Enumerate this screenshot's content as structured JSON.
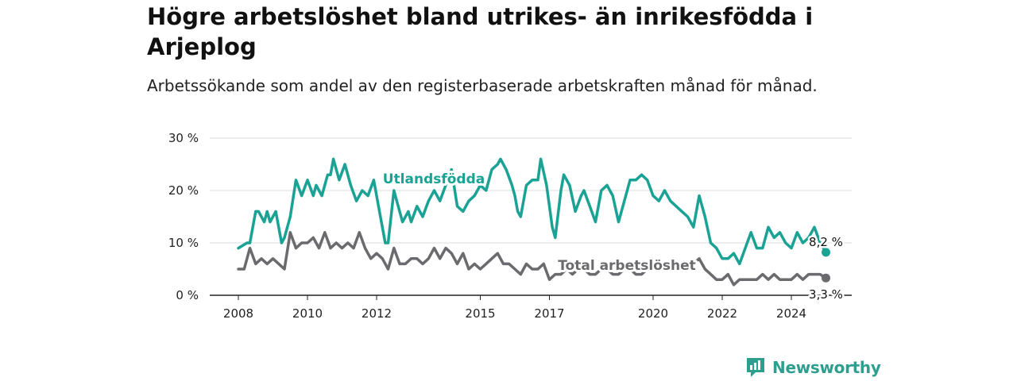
{
  "header": {
    "title": "Högre arbetslöshet bland utrikes- än inrikesfödda i Arjeplog",
    "subtitle": "Arbetssökande som andel av den registerbaserade arbetskraften månad för månad."
  },
  "brand": {
    "name": "Newsworthy",
    "icon": "newsworthy-logo-icon",
    "color": "#2e9e8f"
  },
  "chart_data": {
    "type": "line",
    "title": "Högre arbetslöshet bland utrikes- än inrikesfödda i Arjeplog",
    "subtitle": "Arbetssökande som andel av den registerbaserade arbetskraften månad för månad.",
    "x_ticks": [
      "2008",
      "2010",
      "2012",
      "2015",
      "2017",
      "2020",
      "2022",
      "2024"
    ],
    "y_ticks": [
      "0 %",
      "10 %",
      "20 %",
      "30 %"
    ],
    "ylim": [
      0,
      30
    ],
    "xlim": [
      "2008-01",
      "2025-03"
    ],
    "grid": true,
    "series": [
      {
        "name": "Utlandsfödda",
        "color": "#1aa394",
        "end_label": "8,2 %",
        "points": [
          [
            "2008-01",
            9
          ],
          [
            "2008-04",
            10
          ],
          [
            "2008-05",
            10
          ],
          [
            "2008-07",
            16
          ],
          [
            "2008-08",
            16
          ],
          [
            "2008-10",
            14
          ],
          [
            "2008-11",
            16
          ],
          [
            "2008-12",
            14
          ],
          [
            "2009-01",
            15
          ],
          [
            "2009-02",
            16
          ],
          [
            "2009-04",
            10
          ],
          [
            "2009-05",
            11
          ],
          [
            "2009-07",
            15
          ],
          [
            "2009-09",
            22
          ],
          [
            "2009-11",
            19
          ],
          [
            "2010-01",
            22
          ],
          [
            "2010-03",
            19
          ],
          [
            "2010-04",
            21
          ],
          [
            "2010-06",
            19
          ],
          [
            "2010-08",
            23
          ],
          [
            "2010-09",
            23
          ],
          [
            "2010-10",
            26
          ],
          [
            "2010-12",
            22
          ],
          [
            "2011-02",
            25
          ],
          [
            "2011-04",
            21
          ],
          [
            "2011-06",
            18
          ],
          [
            "2011-08",
            20
          ],
          [
            "2011-10",
            19
          ],
          [
            "2011-12",
            22
          ],
          [
            "2012-02",
            16
          ],
          [
            "2012-04",
            10
          ],
          [
            "2012-05",
            10
          ],
          [
            "2012-07",
            20
          ],
          [
            "2012-10",
            14
          ],
          [
            "2012-12",
            16
          ],
          [
            "2013-01",
            14
          ],
          [
            "2013-03",
            17
          ],
          [
            "2013-05",
            15
          ],
          [
            "2013-07",
            18
          ],
          [
            "2013-09",
            20
          ],
          [
            "2013-11",
            18
          ],
          [
            "2014-01",
            21
          ],
          [
            "2014-03",
            24
          ],
          [
            "2014-05",
            17
          ],
          [
            "2014-07",
            16
          ],
          [
            "2014-09",
            18
          ],
          [
            "2014-11",
            19
          ],
          [
            "2015-01",
            21
          ],
          [
            "2015-03",
            20
          ],
          [
            "2015-05",
            24
          ],
          [
            "2015-07",
            25
          ],
          [
            "2015-08",
            26
          ],
          [
            "2015-10",
            24
          ],
          [
            "2015-12",
            21
          ],
          [
            "2016-01",
            19
          ],
          [
            "2016-02",
            16
          ],
          [
            "2016-03",
            15
          ],
          [
            "2016-05",
            21
          ],
          [
            "2016-07",
            22
          ],
          [
            "2016-09",
            22
          ],
          [
            "2016-10",
            26
          ],
          [
            "2016-12",
            21
          ],
          [
            "2017-02",
            13
          ],
          [
            "2017-03",
            11
          ],
          [
            "2017-05",
            20
          ],
          [
            "2017-06",
            23
          ],
          [
            "2017-08",
            21
          ],
          [
            "2017-10",
            16
          ],
          [
            "2017-12",
            19
          ],
          [
            "2018-01",
            20
          ],
          [
            "2018-03",
            17
          ],
          [
            "2018-05",
            14
          ],
          [
            "2018-07",
            20
          ],
          [
            "2018-09",
            21
          ],
          [
            "2018-11",
            19
          ],
          [
            "2019-01",
            14
          ],
          [
            "2019-03",
            18
          ],
          [
            "2019-05",
            22
          ],
          [
            "2019-07",
            22
          ],
          [
            "2019-09",
            23
          ],
          [
            "2019-11",
            22
          ],
          [
            "2020-01",
            19
          ],
          [
            "2020-03",
            18
          ],
          [
            "2020-05",
            20
          ],
          [
            "2020-07",
            18
          ],
          [
            "2020-09",
            17
          ],
          [
            "2020-11",
            16
          ],
          [
            "2021-01",
            15
          ],
          [
            "2021-03",
            13
          ],
          [
            "2021-05",
            19
          ],
          [
            "2021-07",
            15
          ],
          [
            "2021-09",
            10
          ],
          [
            "2021-11",
            9
          ],
          [
            "2022-01",
            7
          ],
          [
            "2022-03",
            7
          ],
          [
            "2022-05",
            8
          ],
          [
            "2022-07",
            6
          ],
          [
            "2022-09",
            9
          ],
          [
            "2022-11",
            12
          ],
          [
            "2023-01",
            9
          ],
          [
            "2023-03",
            9
          ],
          [
            "2023-05",
            13
          ],
          [
            "2023-07",
            11
          ],
          [
            "2023-09",
            12
          ],
          [
            "2023-11",
            10
          ],
          [
            "2024-01",
            9
          ],
          [
            "2024-03",
            12
          ],
          [
            "2024-05",
            10
          ],
          [
            "2024-07",
            11
          ],
          [
            "2024-09",
            13
          ],
          [
            "2024-11",
            10
          ],
          [
            "2025-01",
            8.2
          ]
        ]
      },
      {
        "name": "Total arbetslöshet",
        "color": "#6b6b6f",
        "end_label": "3,3 %",
        "points": [
          [
            "2008-01",
            5
          ],
          [
            "2008-03",
            5
          ],
          [
            "2008-05",
            9
          ],
          [
            "2008-07",
            6
          ],
          [
            "2008-09",
            7
          ],
          [
            "2008-11",
            6
          ],
          [
            "2009-01",
            7
          ],
          [
            "2009-03",
            6
          ],
          [
            "2009-05",
            5
          ],
          [
            "2009-07",
            12
          ],
          [
            "2009-09",
            9
          ],
          [
            "2009-11",
            10
          ],
          [
            "2010-01",
            10
          ],
          [
            "2010-03",
            11
          ],
          [
            "2010-05",
            9
          ],
          [
            "2010-07",
            12
          ],
          [
            "2010-09",
            9
          ],
          [
            "2010-11",
            10
          ],
          [
            "2011-01",
            9
          ],
          [
            "2011-03",
            10
          ],
          [
            "2011-05",
            9
          ],
          [
            "2011-07",
            12
          ],
          [
            "2011-09",
            9
          ],
          [
            "2011-11",
            7
          ],
          [
            "2012-01",
            8
          ],
          [
            "2012-03",
            7
          ],
          [
            "2012-05",
            5
          ],
          [
            "2012-07",
            9
          ],
          [
            "2012-09",
            6
          ],
          [
            "2012-11",
            6
          ],
          [
            "2013-01",
            7
          ],
          [
            "2013-03",
            7
          ],
          [
            "2013-05",
            6
          ],
          [
            "2013-07",
            7
          ],
          [
            "2013-09",
            9
          ],
          [
            "2013-11",
            7
          ],
          [
            "2014-01",
            9
          ],
          [
            "2014-03",
            8
          ],
          [
            "2014-05",
            6
          ],
          [
            "2014-07",
            8
          ],
          [
            "2014-09",
            5
          ],
          [
            "2014-11",
            6
          ],
          [
            "2015-01",
            5
          ],
          [
            "2015-03",
            6
          ],
          [
            "2015-05",
            7
          ],
          [
            "2015-07",
            8
          ],
          [
            "2015-09",
            6
          ],
          [
            "2015-11",
            6
          ],
          [
            "2016-01",
            5
          ],
          [
            "2016-03",
            4
          ],
          [
            "2016-05",
            6
          ],
          [
            "2016-07",
            5
          ],
          [
            "2016-09",
            5
          ],
          [
            "2016-11",
            6
          ],
          [
            "2017-01",
            3
          ],
          [
            "2017-03",
            4
          ],
          [
            "2017-05",
            4
          ],
          [
            "2017-07",
            5
          ],
          [
            "2017-09",
            4
          ],
          [
            "2017-11",
            5
          ],
          [
            "2018-01",
            5
          ],
          [
            "2018-03",
            4
          ],
          [
            "2018-05",
            4
          ],
          [
            "2018-07",
            5
          ],
          [
            "2018-09",
            5
          ],
          [
            "2018-11",
            4
          ],
          [
            "2019-01",
            4
          ],
          [
            "2019-03",
            5
          ],
          [
            "2019-05",
            5
          ],
          [
            "2019-07",
            4
          ],
          [
            "2019-09",
            4
          ],
          [
            "2019-11",
            5
          ],
          [
            "2020-01",
            5
          ],
          [
            "2020-03",
            5
          ],
          [
            "2020-05",
            6
          ],
          [
            "2020-07",
            5
          ],
          [
            "2020-09",
            5
          ],
          [
            "2020-11",
            6
          ],
          [
            "2021-01",
            5
          ],
          [
            "2021-03",
            6
          ],
          [
            "2021-05",
            7
          ],
          [
            "2021-07",
            5
          ],
          [
            "2021-09",
            4
          ],
          [
            "2021-11",
            3
          ],
          [
            "2022-01",
            3
          ],
          [
            "2022-03",
            4
          ],
          [
            "2022-05",
            2
          ],
          [
            "2022-07",
            3
          ],
          [
            "2022-09",
            3
          ],
          [
            "2022-11",
            3
          ],
          [
            "2023-01",
            3
          ],
          [
            "2023-03",
            4
          ],
          [
            "2023-05",
            3
          ],
          [
            "2023-07",
            4
          ],
          [
            "2023-09",
            3
          ],
          [
            "2023-11",
            3
          ],
          [
            "2024-01",
            3
          ],
          [
            "2024-03",
            4
          ],
          [
            "2024-05",
            3
          ],
          [
            "2024-07",
            4
          ],
          [
            "2024-09",
            4
          ],
          [
            "2024-11",
            4
          ],
          [
            "2025-01",
            3.3
          ]
        ]
      }
    ]
  }
}
